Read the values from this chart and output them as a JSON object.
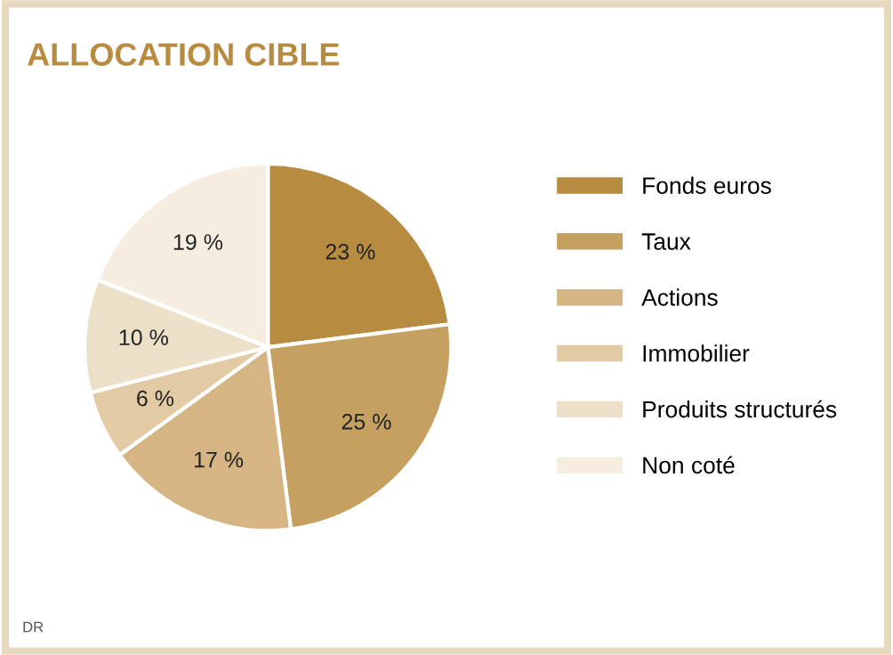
{
  "chart_data": {
    "type": "pie",
    "title": "ALLOCATION CIBLE",
    "categories": [
      "Fonds euros",
      "Taux",
      "Actions",
      "Immobilier",
      "Produits structurés",
      "Non coté"
    ],
    "values": [
      23,
      25,
      17,
      6,
      10,
      19
    ],
    "value_labels": [
      "23 %",
      "25 %",
      "17 %",
      "6 %",
      "10 %",
      "19 %"
    ],
    "colors": [
      "#b88c40",
      "#c6a060",
      "#d4b583",
      "#e2cba4",
      "#ece0c8",
      "#f4ede0"
    ],
    "legend": "right",
    "annotations": [
      "DR"
    ]
  }
}
